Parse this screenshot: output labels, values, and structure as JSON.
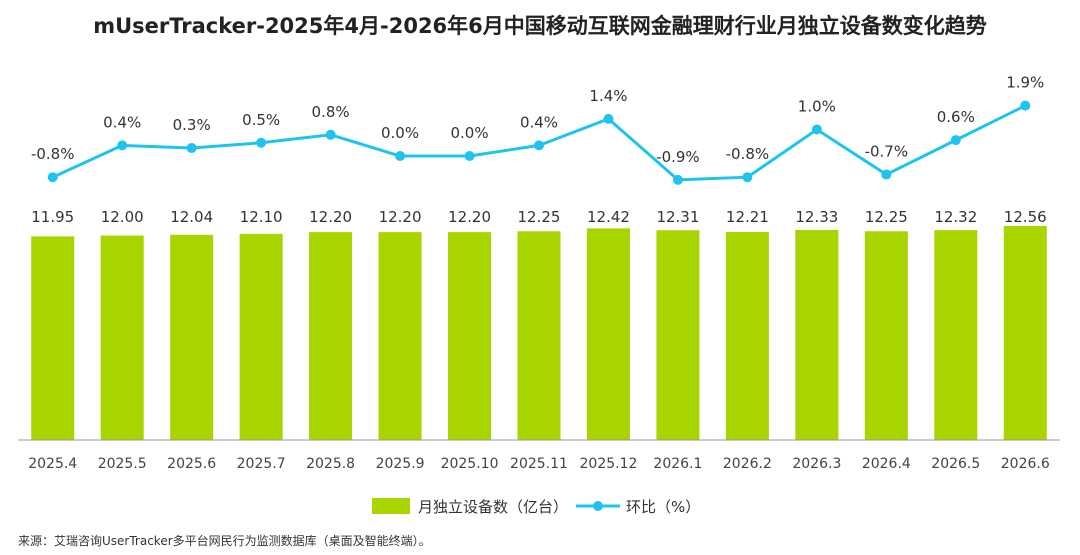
{
  "title": "mUserTracker-2025年4月-2026年6月中国移动互联网金融理财行业月独立设备数变化趋势",
  "source": "来源：艾瑞咨询UserTracker多平台网民行为监测数据库（桌面及智能终端）。",
  "colors": {
    "bar": "#A8D400",
    "line": "#1EC4EE"
  },
  "chart_data": {
    "type": "bar+line",
    "categories": [
      "2025.4",
      "2025.5",
      "2025.6",
      "2025.7",
      "2025.8",
      "2025.9",
      "2025.10",
      "2025.11",
      "2025.12",
      "2026.1",
      "2026.2",
      "2026.3",
      "2026.4",
      "2026.5",
      "2026.6"
    ],
    "series": [
      {
        "name": "月独立设备数（亿台）",
        "type": "bar",
        "values": [
          11.95,
          12.0,
          12.04,
          12.1,
          12.2,
          12.2,
          12.2,
          12.25,
          12.42,
          12.31,
          12.21,
          12.33,
          12.25,
          12.32,
          12.56
        ],
        "labels": [
          "11.95",
          "12.00",
          "12.04",
          "12.10",
          "12.20",
          "12.20",
          "12.20",
          "12.25",
          "12.42",
          "12.31",
          "12.21",
          "12.33",
          "12.25",
          "12.32",
          "12.56"
        ]
      },
      {
        "name": "环比（%）",
        "type": "line",
        "values": [
          -0.8,
          0.4,
          0.3,
          0.5,
          0.8,
          0.0,
          0.0,
          0.4,
          1.4,
          -0.9,
          -0.8,
          1.0,
          -0.7,
          0.6,
          1.9
        ],
        "labels": [
          "-0.8%",
          "0.4%",
          "0.3%",
          "0.5%",
          "0.8%",
          "0.0%",
          "0.0%",
          "0.4%",
          "1.4%",
          "-0.9%",
          "-0.8%",
          "1.0%",
          "-0.7%",
          "0.6%",
          "1.9%"
        ]
      }
    ],
    "legend_position": "bottom",
    "grid": false
  }
}
